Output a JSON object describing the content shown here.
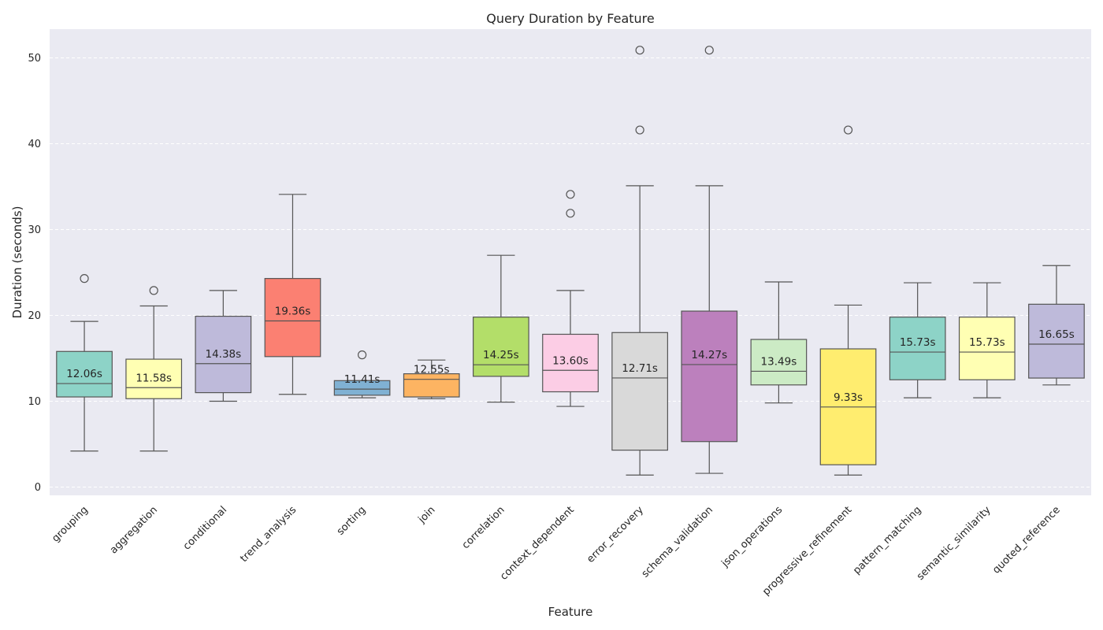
{
  "chart_data": {
    "type": "box",
    "title": "Query Duration by Feature",
    "xlabel": "Feature",
    "ylabel": "Duration (seconds)",
    "ylim": [
      -1,
      53
    ],
    "yticks": [
      0,
      10,
      20,
      30,
      40,
      50
    ],
    "grid": "y-dashed",
    "median_label_suffix": "s",
    "categories": [
      "grouping",
      "aggregation",
      "conditional",
      "trend_analysis",
      "sorting",
      "join",
      "correlation",
      "context_dependent",
      "error_recovery",
      "schema_validation",
      "json_operations",
      "progressive_refinement",
      "pattern_matching",
      "semantic_similarity",
      "quoted_reference"
    ],
    "colors": [
      "#8dd3c7",
      "#ffffb3",
      "#bebada",
      "#fb8072",
      "#80b1d3",
      "#fdb462",
      "#b3de69",
      "#fccde5",
      "#d9d9d9",
      "#bc80bd",
      "#ccebc5",
      "#ffed6f",
      "#8dd3c7",
      "#ffffb3",
      "#bebada"
    ],
    "boxes": [
      {
        "whislo": 4.2,
        "q1": 10.5,
        "med": 12.06,
        "q3": 15.8,
        "whishi": 19.3,
        "fliers": [
          24.3
        ]
      },
      {
        "whislo": 4.2,
        "q1": 10.3,
        "med": 11.58,
        "q3": 14.9,
        "whishi": 21.1,
        "fliers": [
          22.9
        ]
      },
      {
        "whislo": 10.0,
        "q1": 11.0,
        "med": 14.38,
        "q3": 19.9,
        "whishi": 22.9,
        "fliers": []
      },
      {
        "whislo": 10.8,
        "q1": 15.2,
        "med": 19.36,
        "q3": 24.3,
        "whishi": 34.1,
        "fliers": []
      },
      {
        "whislo": 10.4,
        "q1": 10.7,
        "med": 11.41,
        "q3": 12.4,
        "whishi": 12.4,
        "fliers": [
          15.4
        ]
      },
      {
        "whislo": 10.3,
        "q1": 10.5,
        "med": 12.55,
        "q3": 13.2,
        "whishi": 14.8,
        "fliers": []
      },
      {
        "whislo": 9.9,
        "q1": 12.9,
        "med": 14.25,
        "q3": 19.8,
        "whishi": 27.0,
        "fliers": []
      },
      {
        "whislo": 9.4,
        "q1": 11.1,
        "med": 13.6,
        "q3": 17.8,
        "whishi": 22.9,
        "fliers": [
          31.9,
          34.1
        ]
      },
      {
        "whislo": 1.4,
        "q1": 4.3,
        "med": 12.71,
        "q3": 18.0,
        "whishi": 35.1,
        "fliers": [
          41.6,
          50.9
        ]
      },
      {
        "whislo": 1.6,
        "q1": 5.3,
        "med": 14.27,
        "q3": 20.5,
        "whishi": 35.1,
        "fliers": [
          50.9
        ]
      },
      {
        "whislo": 9.8,
        "q1": 11.9,
        "med": 13.49,
        "q3": 17.2,
        "whishi": 23.9,
        "fliers": []
      },
      {
        "whislo": 1.4,
        "q1": 2.6,
        "med": 9.33,
        "q3": 16.1,
        "whishi": 21.2,
        "fliers": [
          41.6
        ]
      },
      {
        "whislo": 10.4,
        "q1": 12.5,
        "med": 15.73,
        "q3": 19.8,
        "whishi": 23.8,
        "fliers": []
      },
      {
        "whislo": 10.4,
        "q1": 12.5,
        "med": 15.73,
        "q3": 19.8,
        "whishi": 23.8,
        "fliers": []
      },
      {
        "whislo": 11.9,
        "q1": 12.7,
        "med": 16.65,
        "q3": 21.3,
        "whishi": 25.8,
        "fliers": []
      }
    ]
  }
}
